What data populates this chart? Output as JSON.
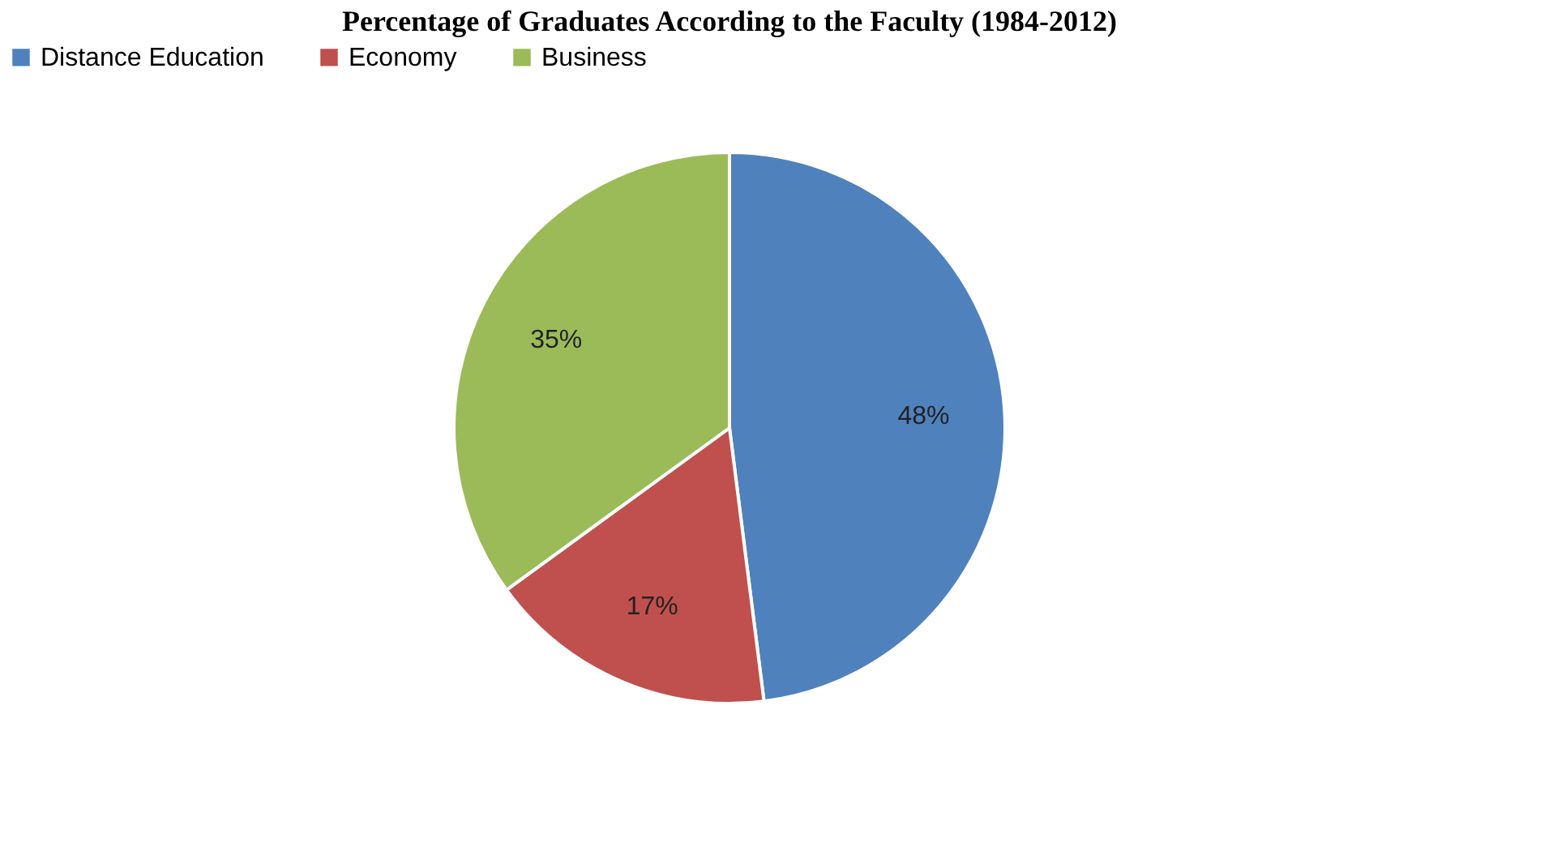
{
  "chart_data": {
    "type": "pie",
    "title": "Percentage of Graduates According to the Faculty (1984-2012)",
    "categories": [
      "Distance Education",
      "Economy",
      "Business"
    ],
    "values": [
      48,
      17,
      35
    ],
    "value_labels": [
      "48%",
      "17%",
      "35%"
    ],
    "colors": [
      "#4f81bd",
      "#c0504d",
      "#9bbb59"
    ],
    "legend": "top"
  }
}
